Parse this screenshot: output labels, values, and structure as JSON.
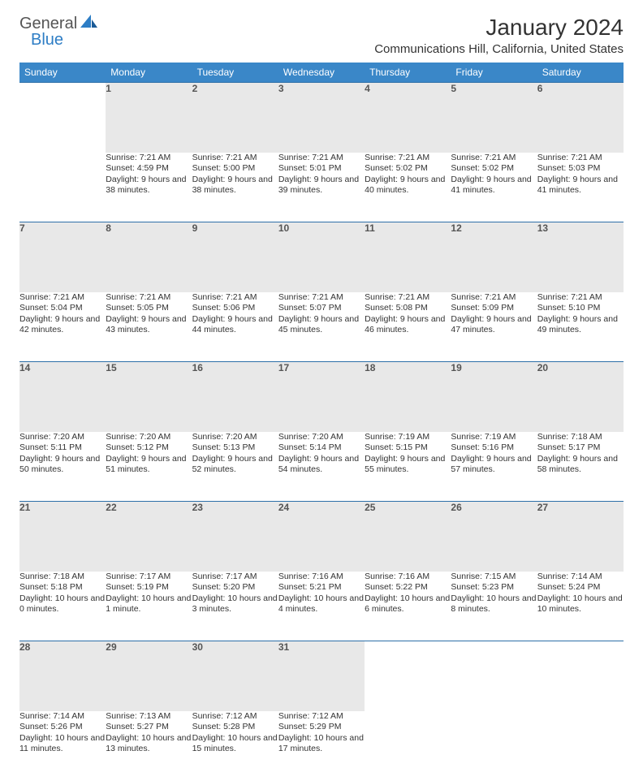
{
  "logo": {
    "general": "General",
    "blue": "Blue"
  },
  "title": {
    "month_year": "January 2024",
    "location": "Communications Hill, California, United States"
  },
  "colors": {
    "header_bg": "#3a87c8",
    "header_text": "#ffffff",
    "daynum_bg": "#e8e8e8",
    "daynum_border": "#2d6fa8",
    "body_text": "#333333",
    "logo_blue": "#2d7dc5",
    "logo_gray": "#555555"
  },
  "day_headers": [
    "Sunday",
    "Monday",
    "Tuesday",
    "Wednesday",
    "Thursday",
    "Friday",
    "Saturday"
  ],
  "weeks": [
    {
      "nums": [
        "",
        "1",
        "2",
        "3",
        "4",
        "5",
        "6"
      ],
      "cells": [
        "",
        "Sunrise: 7:21 AM\nSunset: 4:59 PM\nDaylight: 9 hours and 38 minutes.",
        "Sunrise: 7:21 AM\nSunset: 5:00 PM\nDaylight: 9 hours and 38 minutes.",
        "Sunrise: 7:21 AM\nSunset: 5:01 PM\nDaylight: 9 hours and 39 minutes.",
        "Sunrise: 7:21 AM\nSunset: 5:02 PM\nDaylight: 9 hours and 40 minutes.",
        "Sunrise: 7:21 AM\nSunset: 5:02 PM\nDaylight: 9 hours and 41 minutes.",
        "Sunrise: 7:21 AM\nSunset: 5:03 PM\nDaylight: 9 hours and 41 minutes."
      ]
    },
    {
      "nums": [
        "7",
        "8",
        "9",
        "10",
        "11",
        "12",
        "13"
      ],
      "cells": [
        "Sunrise: 7:21 AM\nSunset: 5:04 PM\nDaylight: 9 hours and 42 minutes.",
        "Sunrise: 7:21 AM\nSunset: 5:05 PM\nDaylight: 9 hours and 43 minutes.",
        "Sunrise: 7:21 AM\nSunset: 5:06 PM\nDaylight: 9 hours and 44 minutes.",
        "Sunrise: 7:21 AM\nSunset: 5:07 PM\nDaylight: 9 hours and 45 minutes.",
        "Sunrise: 7:21 AM\nSunset: 5:08 PM\nDaylight: 9 hours and 46 minutes.",
        "Sunrise: 7:21 AM\nSunset: 5:09 PM\nDaylight: 9 hours and 47 minutes.",
        "Sunrise: 7:21 AM\nSunset: 5:10 PM\nDaylight: 9 hours and 49 minutes."
      ]
    },
    {
      "nums": [
        "14",
        "15",
        "16",
        "17",
        "18",
        "19",
        "20"
      ],
      "cells": [
        "Sunrise: 7:20 AM\nSunset: 5:11 PM\nDaylight: 9 hours and 50 minutes.",
        "Sunrise: 7:20 AM\nSunset: 5:12 PM\nDaylight: 9 hours and 51 minutes.",
        "Sunrise: 7:20 AM\nSunset: 5:13 PM\nDaylight: 9 hours and 52 minutes.",
        "Sunrise: 7:20 AM\nSunset: 5:14 PM\nDaylight: 9 hours and 54 minutes.",
        "Sunrise: 7:19 AM\nSunset: 5:15 PM\nDaylight: 9 hours and 55 minutes.",
        "Sunrise: 7:19 AM\nSunset: 5:16 PM\nDaylight: 9 hours and 57 minutes.",
        "Sunrise: 7:18 AM\nSunset: 5:17 PM\nDaylight: 9 hours and 58 minutes."
      ]
    },
    {
      "nums": [
        "21",
        "22",
        "23",
        "24",
        "25",
        "26",
        "27"
      ],
      "cells": [
        "Sunrise: 7:18 AM\nSunset: 5:18 PM\nDaylight: 10 hours and 0 minutes.",
        "Sunrise: 7:17 AM\nSunset: 5:19 PM\nDaylight: 10 hours and 1 minute.",
        "Sunrise: 7:17 AM\nSunset: 5:20 PM\nDaylight: 10 hours and 3 minutes.",
        "Sunrise: 7:16 AM\nSunset: 5:21 PM\nDaylight: 10 hours and 4 minutes.",
        "Sunrise: 7:16 AM\nSunset: 5:22 PM\nDaylight: 10 hours and 6 minutes.",
        "Sunrise: 7:15 AM\nSunset: 5:23 PM\nDaylight: 10 hours and 8 minutes.",
        "Sunrise: 7:14 AM\nSunset: 5:24 PM\nDaylight: 10 hours and 10 minutes."
      ]
    },
    {
      "nums": [
        "28",
        "29",
        "30",
        "31",
        "",
        "",
        ""
      ],
      "cells": [
        "Sunrise: 7:14 AM\nSunset: 5:26 PM\nDaylight: 10 hours and 11 minutes.",
        "Sunrise: 7:13 AM\nSunset: 5:27 PM\nDaylight: 10 hours and 13 minutes.",
        "Sunrise: 7:12 AM\nSunset: 5:28 PM\nDaylight: 10 hours and 15 minutes.",
        "Sunrise: 7:12 AM\nSunset: 5:29 PM\nDaylight: 10 hours and 17 minutes.",
        "",
        "",
        ""
      ]
    }
  ]
}
